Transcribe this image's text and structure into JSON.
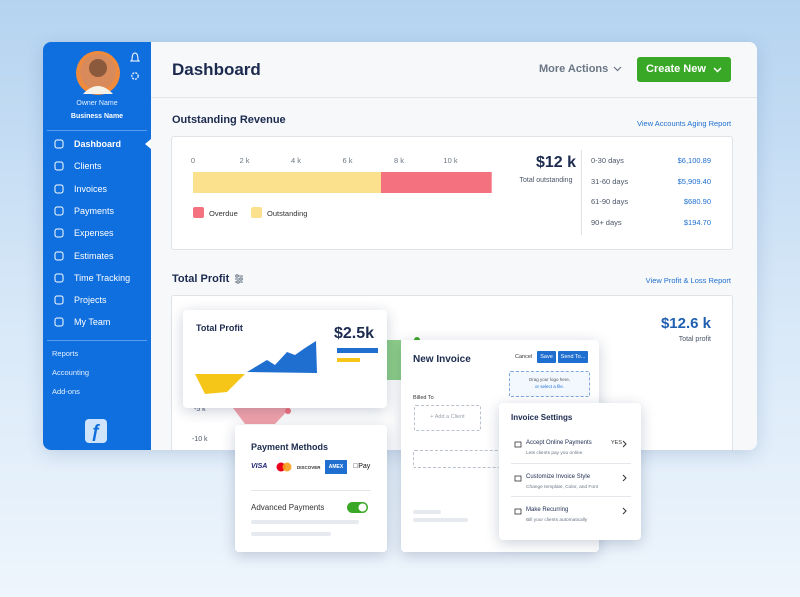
{
  "sidebar": {
    "owner_name": "Owner Name",
    "business_name": "Business Name",
    "nav": [
      "Dashboard",
      "Clients",
      "Invoices",
      "Payments",
      "Expenses",
      "Estimates",
      "Time Tracking",
      "Projects",
      "My Team"
    ],
    "secondary": [
      "Reports",
      "Accounting",
      "Add-ons"
    ]
  },
  "header": {
    "title": "Dashboard",
    "more_actions": "More Actions",
    "create_new": "Create New"
  },
  "outstanding_revenue": {
    "title": "Outstanding Revenue",
    "link": "View Accounts Aging Report",
    "chart": {
      "type": "bar",
      "stacked": true,
      "xlim": [
        0,
        12
      ],
      "xticks": [
        0,
        {
          "value": 2,
          "label": "2 k"
        },
        {
          "value": 4,
          "label": "4 k"
        },
        {
          "value": 6,
          "label": "6 k"
        },
        {
          "value": 8,
          "label": "8 k"
        },
        {
          "value": 10,
          "label": "10 k"
        }
      ],
      "series": [
        {
          "name": "Overdue",
          "color": "#f4717f",
          "values": [
            4.3
          ]
        },
        {
          "name": "Outstanding",
          "color": "#fbe08e",
          "values": [
            7.3
          ]
        }
      ]
    },
    "total": "$12 k",
    "total_label": "Total outstanding",
    "aging": [
      {
        "period": "0-30 days",
        "amount": "$6,100.89"
      },
      {
        "period": "31-60 days",
        "amount": "$5,909.40"
      },
      {
        "period": "61-90 days",
        "amount": "$680.90"
      },
      {
        "period": "90+ days",
        "amount": "$194.70"
      }
    ]
  },
  "total_profit": {
    "title": "Total Profit",
    "link": "View Profit & Loss Report",
    "total": "$12.6 k",
    "total_label": "Total profit",
    "axis_labels": [
      "-5 k",
      "-10 k"
    ]
  },
  "profit_card": {
    "title": "Total Profit",
    "amount": "$2.5k"
  },
  "payment_methods": {
    "title": "Payment Methods",
    "logos": [
      "VISA",
      "DISCOVER",
      "AMEX",
      "Pay"
    ],
    "advanced_payments": "Advanced Payments"
  },
  "new_invoice": {
    "title": "New Invoice",
    "cancel": "Cancel",
    "save": "Save",
    "send_to": "Send To...",
    "logo_drop": [
      "Drag your logo here,",
      "or select a file."
    ],
    "billed_to": "Billed To",
    "add_client": "+ Add a Client"
  },
  "invoice_settings": {
    "title": "Invoice Settings",
    "items": [
      {
        "label": "Accept Online Payments",
        "status": "YES",
        "description": "Lets clients pay you online"
      },
      {
        "label": "Customize Invoice Style",
        "description": "Change template, Color, and Font"
      },
      {
        "label": "Make Recurring",
        "description": "Bill your clients automatically"
      }
    ]
  }
}
